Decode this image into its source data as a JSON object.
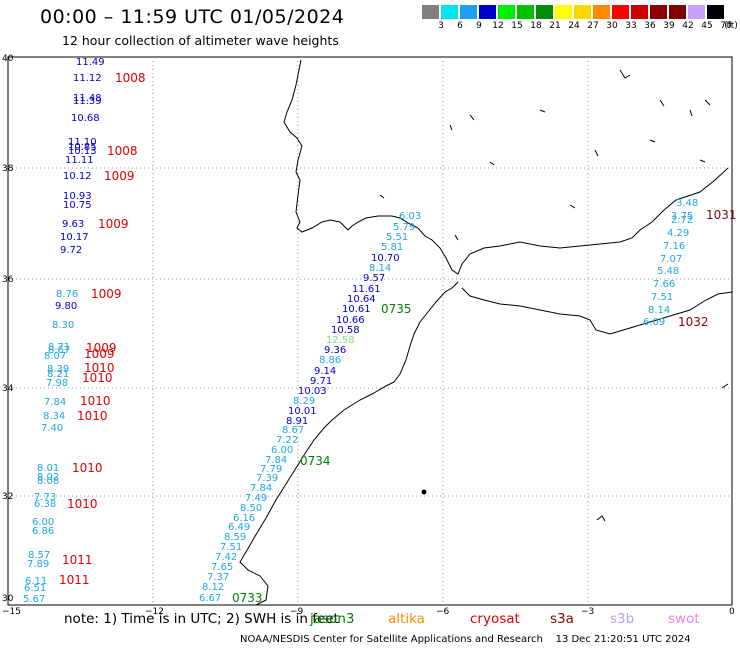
{
  "header": {
    "title": "00:00 – 11:59 UTC 01/05/2024",
    "subtitle": "12 hour collection of altimeter wave heights"
  },
  "legend": {
    "unit": "(ft)",
    "items": [
      {
        "label": "3",
        "color": "#808080"
      },
      {
        "label": "6",
        "color": "#00e5ee"
      },
      {
        "label": "9",
        "color": "#1e9fef"
      },
      {
        "label": "12",
        "color": "#0000cd"
      },
      {
        "label": "15",
        "color": "#00ee00"
      },
      {
        "label": "18",
        "color": "#00c000"
      },
      {
        "label": "21",
        "color": "#008b00"
      },
      {
        "label": "24",
        "color": "#ffff00"
      },
      {
        "label": "27",
        "color": "#ffd700"
      },
      {
        "label": "30",
        "color": "#ff8c00"
      },
      {
        "label": "33",
        "color": "#ff0000"
      },
      {
        "label": "36",
        "color": "#cd0000"
      },
      {
        "label": "39",
        "color": "#8b0000"
      },
      {
        "label": "42",
        "color": "#800000"
      },
      {
        "label": "45",
        "color": "#c8a0ff"
      },
      {
        "label": "70",
        "color": "#000000"
      }
    ]
  },
  "map": {
    "x_ticks": [
      "−15",
      "−12",
      "−9",
      "−6",
      "−3",
      "0"
    ],
    "y_ticks": [
      "30",
      "32",
      "34",
      "36",
      "38",
      "40"
    ]
  },
  "wave_heights": {
    "left_column_blue": [
      "11.49",
      "11.12",
      "11.48",
      "11.39",
      "10.68",
      "11.10",
      "10.85",
      "10.13",
      "11.11",
      "10.12",
      "10.93",
      "10.75",
      "9.63",
      "10.17",
      "9.72",
      "9.80"
    ],
    "left_column_cyan": [
      "8.76",
      "8.30",
      "8.71",
      "8.67",
      "8.39",
      "8.21",
      "7.98",
      "7.84",
      "8.07",
      "8.34",
      "7.40",
      "8.01",
      "8.02",
      "8.08",
      "7.73",
      "6.38",
      "6.00",
      "6.86",
      "8.57",
      "7.89",
      "6.11",
      "6.51",
      "5.67"
    ],
    "pressure": [
      "1008",
      "1008",
      "1009",
      "1009",
      "1009",
      "1009",
      "1009",
      "1010",
      "1010",
      "1010",
      "1010",
      "1010",
      "1010",
      "1011",
      "1011"
    ],
    "pass_0733": [
      "6.67",
      "8.12",
      "7.37",
      "7.65",
      "7.42",
      "7.51",
      "8.59",
      "6.49",
      "6.16",
      "8.50",
      "7.49",
      "7.84",
      "7.39",
      "7.79",
      "7.84",
      "6.00",
      "7.22",
      "8.67",
      "8.91",
      "10.01",
      "8.29",
      "10.03",
      "9.71",
      "9.14",
      "8.86",
      "9.36",
      "12.58",
      "10.58",
      "10.66",
      "10.61",
      "10.64",
      "11.61",
      "9.57",
      "8.14",
      "10.70",
      "5.81",
      "5.51",
      "5.79",
      "6.03"
    ],
    "pass_east": [
      "3.48",
      "3.75",
      "2.72",
      "4.29",
      "7.16",
      "7.07",
      "5.48",
      "7.66",
      "7.51",
      "8.14",
      "6.09"
    ],
    "pass_labels": [
      "0735",
      "0734",
      "0733"
    ],
    "east_pressure": [
      "1031",
      "1032"
    ]
  },
  "footer": {
    "note": "note:  1) Time is in UTC;  2) SWH is in feet",
    "satellites": [
      {
        "name": "jason3",
        "color": "#008000"
      },
      {
        "name": "altika",
        "color": "#ff8c00"
      },
      {
        "name": "cryosat",
        "color": "#e00000"
      },
      {
        "name": "s3a",
        "color": "#8b0000"
      },
      {
        "name": "s3b",
        "color": "#b8a0ee"
      },
      {
        "name": "swot",
        "color": "#ee82ee"
      }
    ],
    "credit": "NOAA/NESDIS Center for Satellite Applications and Research",
    "timestamp": "13 Dec 21:20:51 UTC 2024"
  }
}
